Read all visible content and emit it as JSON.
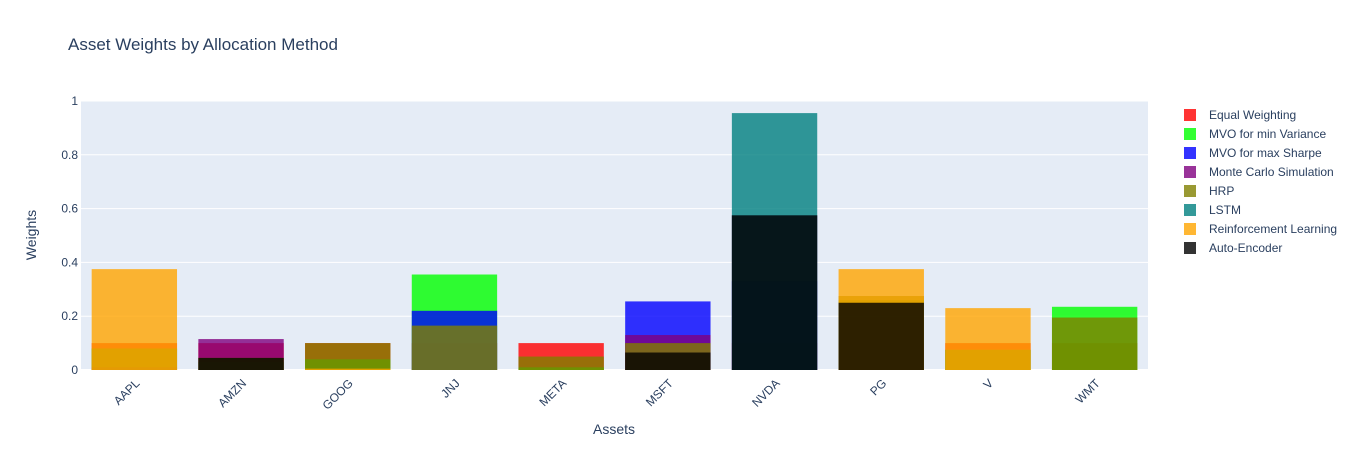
{
  "chart_data": {
    "type": "bar",
    "barmode": "overlay",
    "title": "Asset Weights by Allocation Method",
    "xlabel": "Assets",
    "ylabel": "Weights",
    "ylim": [
      0,
      1
    ],
    "yticks": [
      "0",
      "0.2",
      "0.4",
      "0.6",
      "0.8",
      "1"
    ],
    "grid": true,
    "legend_position": "right",
    "categories": [
      "AAPL",
      "AMZN",
      "GOOG",
      "JNJ",
      "META",
      "MSFT",
      "NVDA",
      "PG",
      "V",
      "WMT"
    ],
    "series": [
      {
        "name": "Equal Weighting",
        "color": "#ff0000",
        "values": [
          0.1,
          0.1,
          0.1,
          0.1,
          0.1,
          0.1,
          0.1,
          0.1,
          0.1,
          0.1
        ]
      },
      {
        "name": "MVO for min Variance",
        "color": "#00ff00",
        "values": [
          0.08,
          0.03,
          0.04,
          0.355,
          0.01,
          0.0,
          0.0,
          0.26,
          0.075,
          0.235
        ]
      },
      {
        "name": "MVO for max Sharpe",
        "color": "#0000ff",
        "values": [
          0.0,
          0.0,
          0.0,
          0.22,
          0.0,
          0.255,
          0.33,
          0.0,
          0.0,
          0.0
        ]
      },
      {
        "name": "Monte Carlo Simulation",
        "color": "#800080",
        "values": [
          0.01,
          0.115,
          0.0,
          0.0,
          0.0,
          0.13,
          0.575,
          0.0,
          0.0,
          0.0
        ]
      },
      {
        "name": "HRP",
        "color": "#808000",
        "values": [
          0.08,
          0.045,
          0.1,
          0.165,
          0.05,
          0.1,
          0.0,
          0.275,
          0.075,
          0.195
        ]
      },
      {
        "name": "LSTM",
        "color": "#008080",
        "values": [
          0.0,
          0.0,
          0.0,
          0.0,
          0.0,
          0.0,
          0.955,
          0.0,
          0.0,
          0.0
        ]
      },
      {
        "name": "Reinforcement Learning",
        "color": "#ffa500",
        "values": [
          0.375,
          0.0,
          0.005,
          0.0,
          0.0,
          0.0,
          0.0,
          0.375,
          0.23,
          0.0
        ]
      },
      {
        "name": "Auto-Encoder",
        "color": "#000000",
        "values": [
          0.0,
          0.045,
          0.0,
          0.0,
          0.0,
          0.065,
          0.575,
          0.25,
          0.0,
          0.0
        ]
      }
    ]
  }
}
